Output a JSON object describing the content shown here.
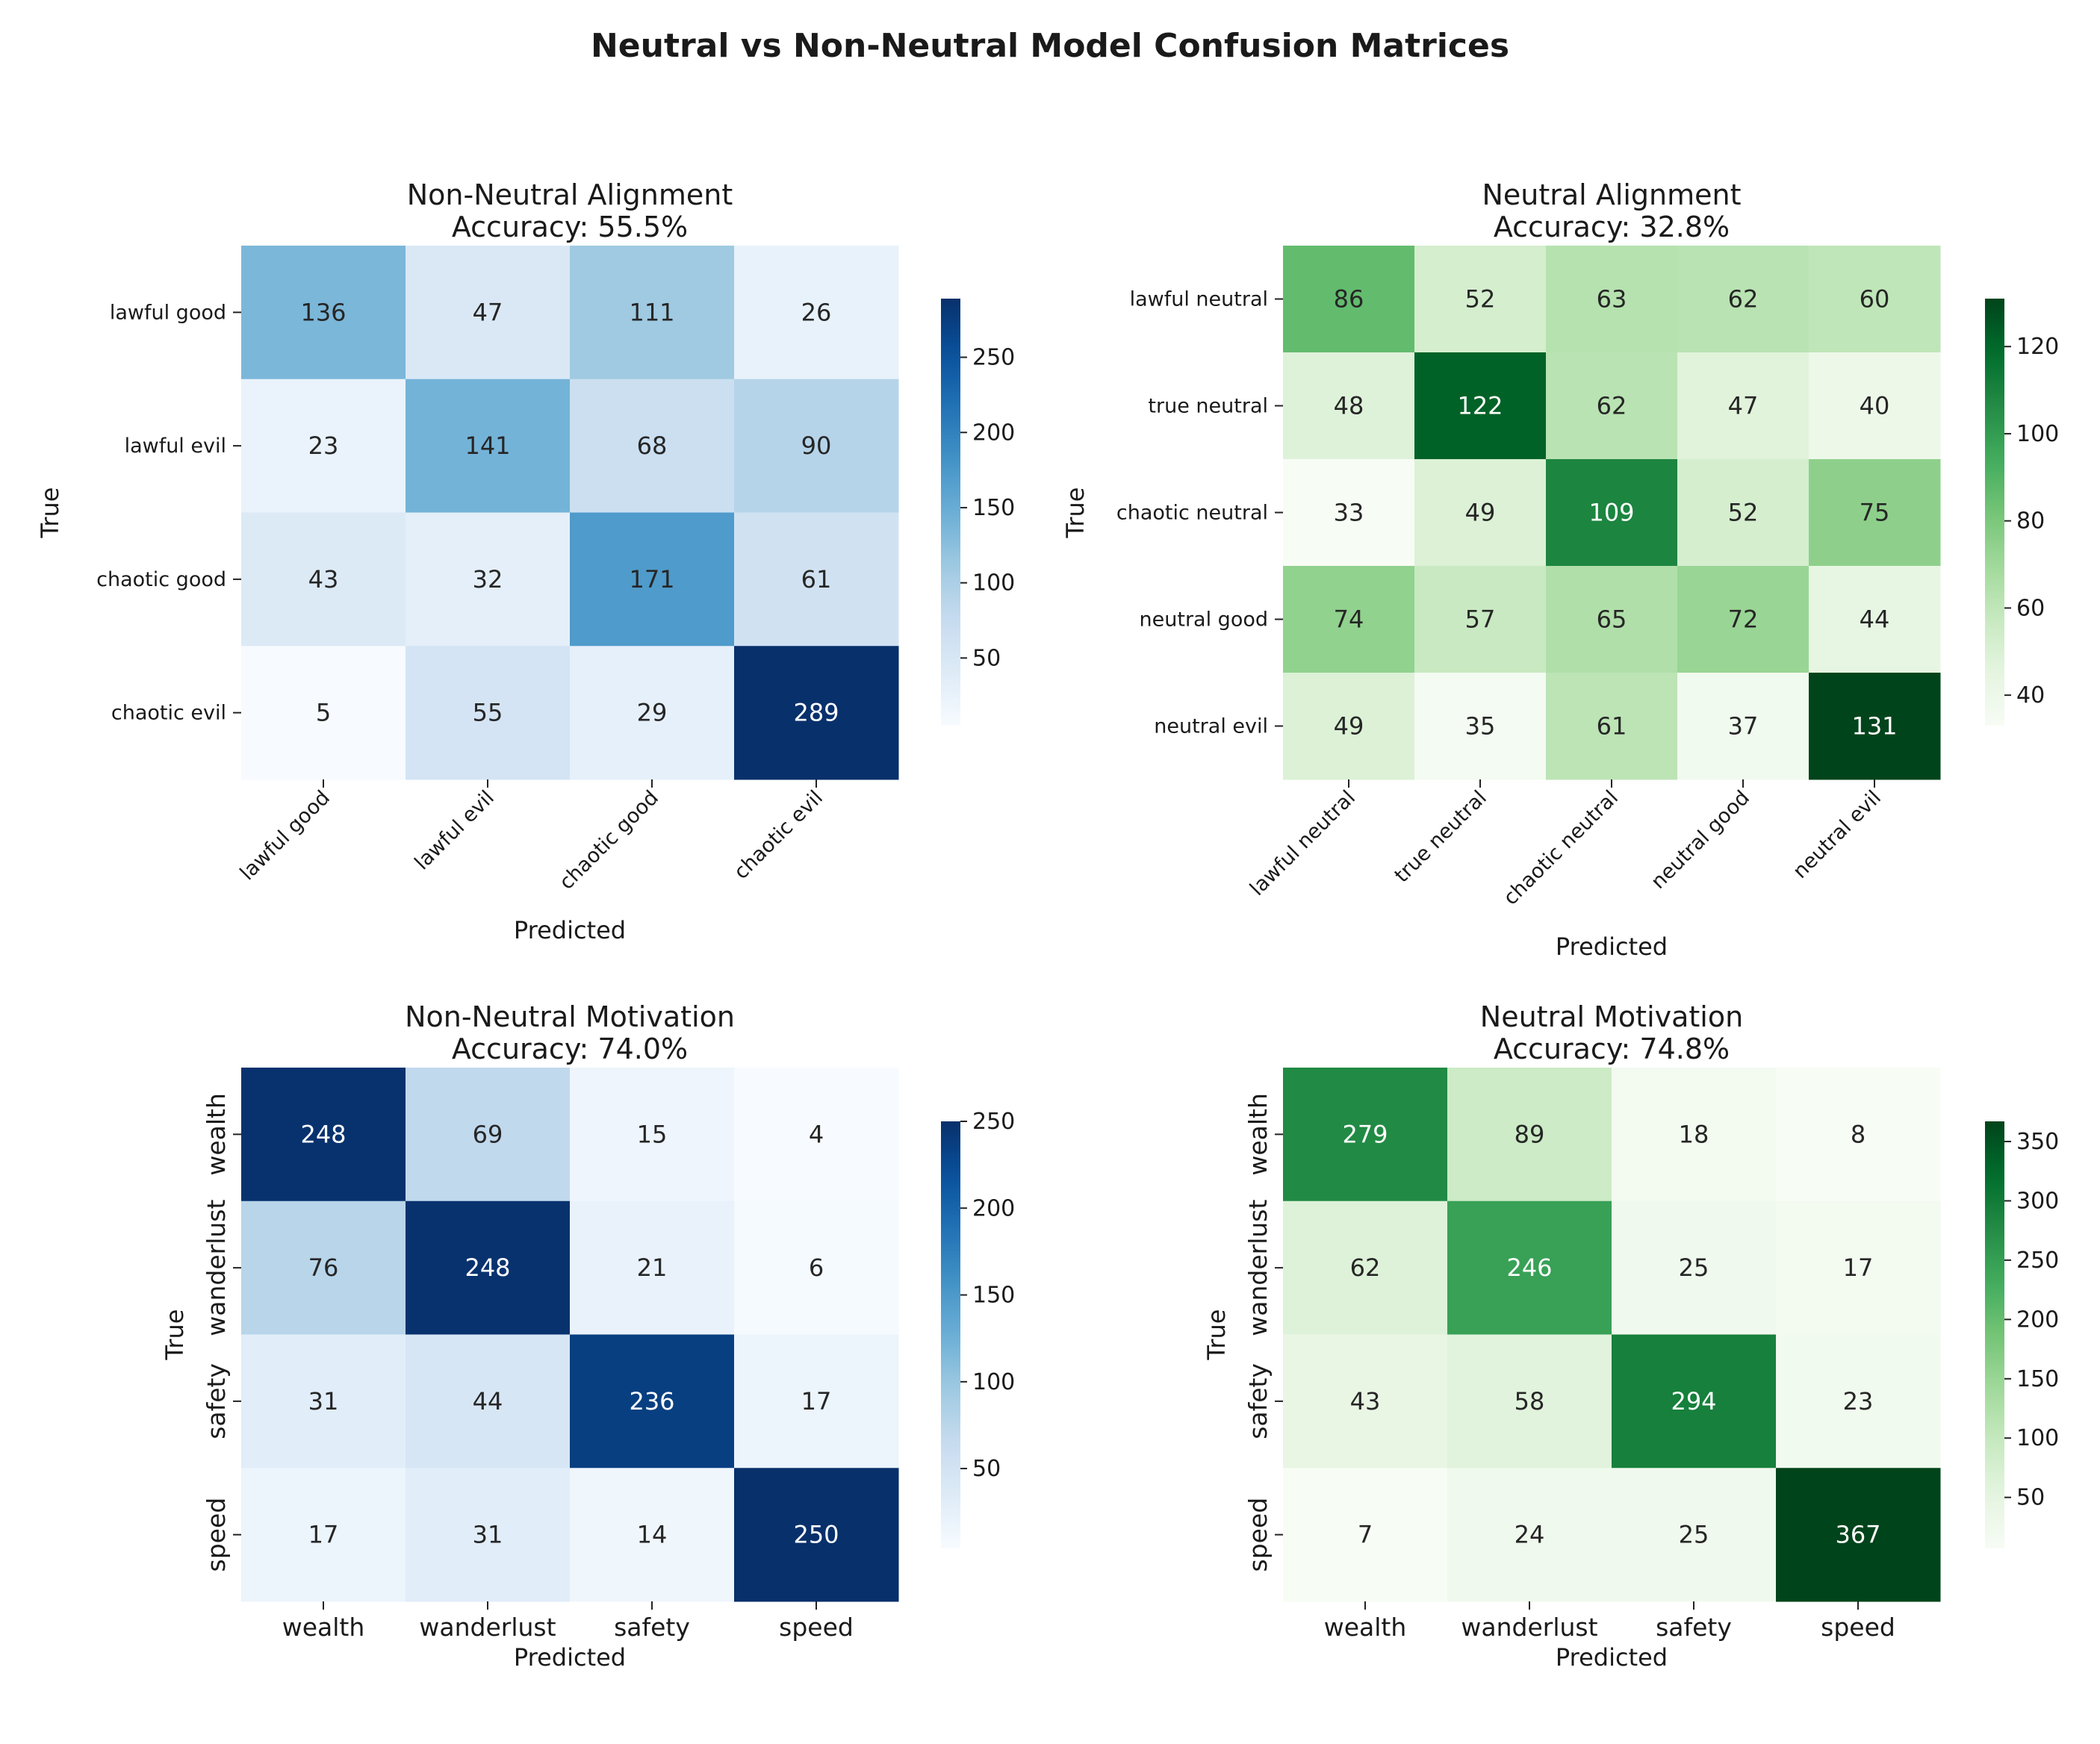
{
  "figure": {
    "title": "Neutral vs Non-Neutral Model Confusion Matrices"
  },
  "chart_data": [
    {
      "type": "heatmap",
      "colormap": "Blues",
      "title": "Non-Neutral Alignment",
      "subtitle": "Accuracy: 55.5%",
      "xlabel": "Predicted",
      "ylabel": "True",
      "x_tick_rotation": 45,
      "y_tick_rotation": 0,
      "x_categories": [
        "lawful good",
        "lawful evil",
        "chaotic good",
        "chaotic evil"
      ],
      "y_categories": [
        "lawful good",
        "lawful evil",
        "chaotic good",
        "chaotic evil"
      ],
      "values": [
        [
          136,
          47,
          111,
          26
        ],
        [
          23,
          141,
          68,
          90
        ],
        [
          43,
          32,
          171,
          61
        ],
        [
          5,
          55,
          29,
          289
        ]
      ],
      "colorbar_ticks": [
        50,
        100,
        150,
        200,
        250
      ]
    },
    {
      "type": "heatmap",
      "colormap": "Greens",
      "title": "Neutral Alignment",
      "subtitle": "Accuracy: 32.8%",
      "xlabel": "Predicted",
      "ylabel": "True",
      "x_tick_rotation": 45,
      "y_tick_rotation": 0,
      "x_categories": [
        "lawful neutral",
        "true neutral",
        "chaotic neutral",
        "neutral good",
        "neutral evil"
      ],
      "y_categories": [
        "lawful neutral",
        "true neutral",
        "chaotic neutral",
        "neutral good",
        "neutral evil"
      ],
      "values": [
        [
          86,
          52,
          63,
          62,
          60
        ],
        [
          48,
          122,
          62,
          47,
          40
        ],
        [
          33,
          49,
          109,
          52,
          75
        ],
        [
          74,
          57,
          65,
          72,
          44
        ],
        [
          49,
          35,
          61,
          37,
          131
        ]
      ],
      "colorbar_ticks": [
        40,
        60,
        80,
        100,
        120
      ]
    },
    {
      "type": "heatmap",
      "colormap": "Blues",
      "title": "Non-Neutral Motivation",
      "subtitle": "Accuracy: 74.0%",
      "xlabel": "Predicted",
      "ylabel": "True",
      "x_tick_rotation": 0,
      "y_tick_rotation": 90,
      "x_categories": [
        "wealth",
        "wanderlust",
        "safety",
        "speed"
      ],
      "y_categories": [
        "wealth",
        "wanderlust",
        "safety",
        "speed"
      ],
      "values": [
        [
          248,
          69,
          15,
          4
        ],
        [
          76,
          248,
          21,
          6
        ],
        [
          31,
          44,
          236,
          17
        ],
        [
          17,
          31,
          14,
          250
        ]
      ],
      "colorbar_ticks": [
        50,
        100,
        150,
        200,
        250
      ]
    },
    {
      "type": "heatmap",
      "colormap": "Greens",
      "title": "Neutral Motivation",
      "subtitle": "Accuracy: 74.8%",
      "xlabel": "Predicted",
      "ylabel": "True",
      "x_tick_rotation": 0,
      "y_tick_rotation": 90,
      "x_categories": [
        "wealth",
        "wanderlust",
        "safety",
        "speed"
      ],
      "y_categories": [
        "wealth",
        "wanderlust",
        "safety",
        "speed"
      ],
      "values": [
        [
          279,
          89,
          18,
          8
        ],
        [
          62,
          246,
          25,
          17
        ],
        [
          43,
          58,
          294,
          23
        ],
        [
          7,
          24,
          25,
          367
        ]
      ],
      "colorbar_ticks": [
        50,
        100,
        150,
        200,
        250,
        300,
        350
      ]
    }
  ]
}
